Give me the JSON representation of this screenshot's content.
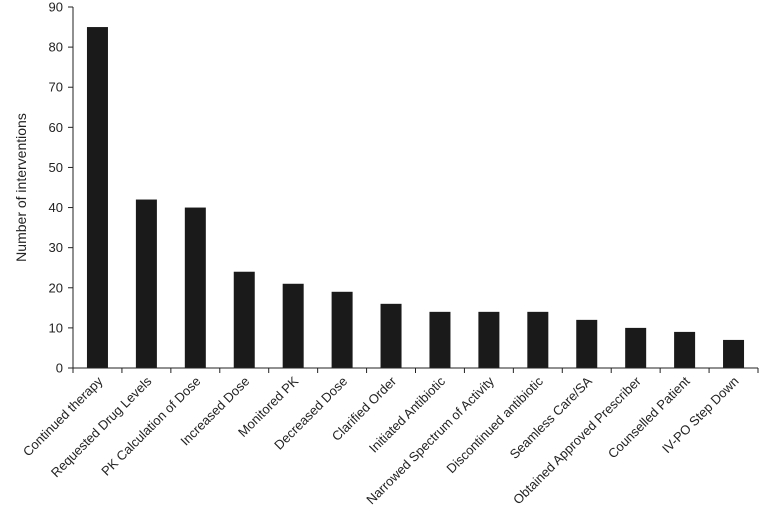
{
  "chart_data": {
    "type": "bar",
    "ylabel": "Number of interventions",
    "ylim": [
      0,
      90
    ],
    "yticks": [
      0,
      10,
      20,
      30,
      40,
      50,
      60,
      70,
      80,
      90
    ],
    "categories": [
      "Continued therapy",
      "Requested Drug Levels",
      "PK Calculation of Dose",
      "Increased Dose",
      "Monitored PK",
      "Decreased Dose",
      "Clarified Order",
      "Initiated Antibiotic",
      "Narrowed Spectrum of Activity",
      "Discontinued antibiotic",
      "Seamless Care/SA",
      "Obtained Approved Prescriber",
      "Counselled Patient",
      "IV-PO Step Down"
    ],
    "values": [
      85,
      42,
      40,
      24,
      21,
      19,
      16,
      14,
      14,
      14,
      12,
      10,
      9,
      7
    ],
    "bar_color": "#1a1a1a",
    "grid": false
  }
}
